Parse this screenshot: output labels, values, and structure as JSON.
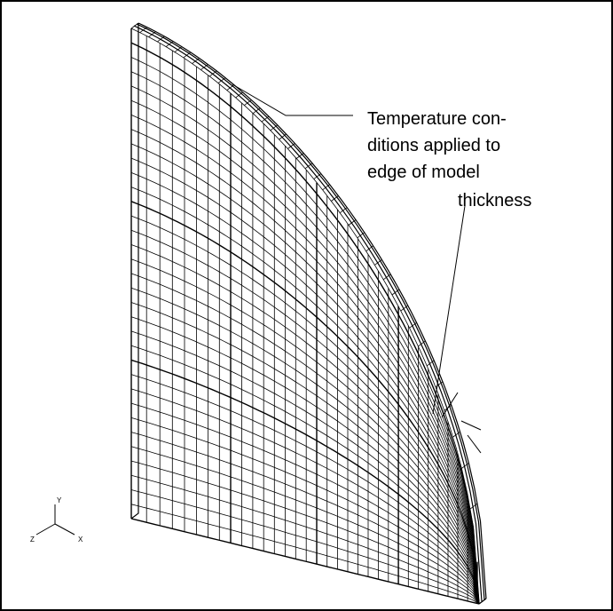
{
  "annotations": {
    "edge_label": [
      "Temperature con-",
      "ditions applied to",
      "edge of model"
    ],
    "thickness_label": "thickness"
  },
  "axes": {
    "y": "Y",
    "x": "X",
    "z": "Z"
  }
}
